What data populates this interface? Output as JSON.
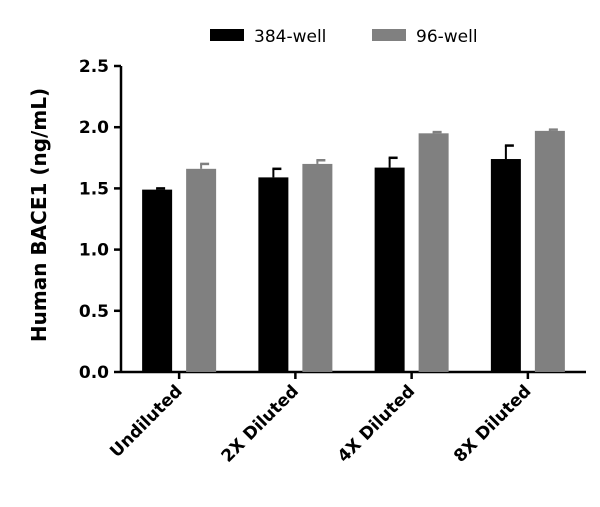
{
  "chart_data": {
    "type": "bar",
    "title": "",
    "xlabel": "",
    "ylabel": "Human BACE1 (ng/mL)",
    "ylim": [
      0,
      2.5
    ],
    "yticks": [
      "0.0",
      "0.5",
      "1.0",
      "1.5",
      "2.0",
      "2.5"
    ],
    "categories": [
      "Undiluted",
      "2X Diluted",
      "4X Diluted",
      "8X Diluted"
    ],
    "series": [
      {
        "name": "384-well",
        "color": "#000000",
        "values": [
          1.49,
          1.59,
          1.67,
          1.74
        ],
        "errors": [
          0.01,
          0.07,
          0.08,
          0.11
        ]
      },
      {
        "name": "96-well",
        "color": "#808080",
        "values": [
          1.66,
          1.7,
          1.95,
          1.97
        ],
        "errors": [
          0.04,
          0.03,
          0.01,
          0.01
        ]
      }
    ],
    "legend": "top-center",
    "grid": false
  }
}
